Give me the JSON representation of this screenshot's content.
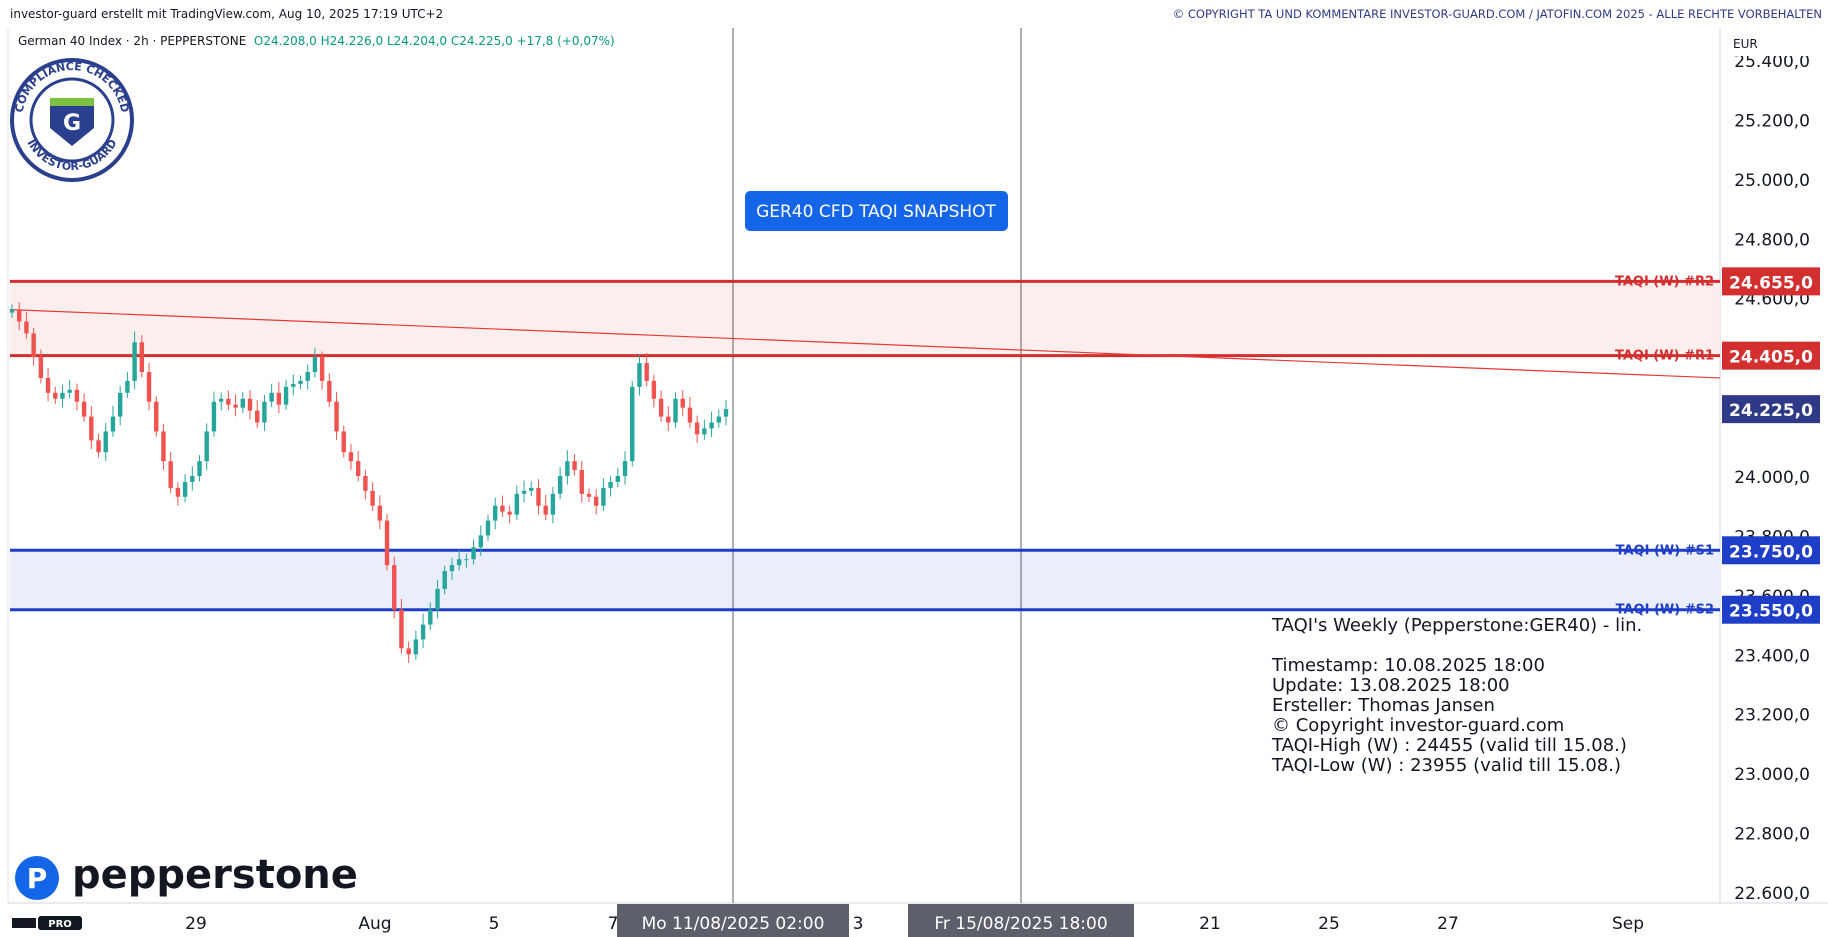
{
  "header": {
    "left_text": "investor-guard erstellt mit TradingView.com, Aug 10, 2025 17:19 UTC+2",
    "right_text": "© COPYRIGHT TA UND KOMMENTARE INVESTOR-GUARD.COM / JATOFIN.COM 2025 - ALLE RECHTE VORBEHALTEN"
  },
  "legend": {
    "symbol": "German 40 Index · 2h · PEPPERSTONE",
    "open": "O24.208,0",
    "high": "H24.226,0",
    "low": "L24.204,0",
    "close": "C24.225,0",
    "change": "+17,8 (+0,07%)"
  },
  "badge": {
    "ring_top": "COMPLIANCE CHECKED",
    "ring_bottom": "INVESTOR-GUARD",
    "letter": "G"
  },
  "snapshot_label": "GER40 CFD TAQI SNAPSHOT",
  "currency": "EUR",
  "brand": {
    "name": "pepperstone",
    "tv": "TV PRO"
  },
  "info_box": {
    "title": "TAQI's Weekly (Pepperstone:GER40) - lin.",
    "lines": [
      "Timestamp: 10.08.2025 18:00",
      "Update: 13.08.2025 18:00",
      "Ersteller: Thomas Jansen",
      "© Copyright investor-guard.com",
      "TAQI-High (W) : 24455 (valid till 15.08.)",
      "TAQI-Low (W) : 23955 (valid till 15.08.)"
    ]
  },
  "crosshair_labels": [
    "Mo 11/08/2025    02:00",
    "Fr 15/08/2025    18:00"
  ],
  "colors": {
    "resistance": "#d32f2f",
    "support": "#1e3ec8",
    "up": "#26a69a",
    "down": "#ef5350",
    "price_tag": "#2e3a87",
    "snapshot": "#1565e8"
  },
  "chart_data": {
    "type": "candlestick",
    "y_axis": {
      "min": 22600,
      "max": 25400,
      "ticks": [
        "25.400,0",
        "25.200,0",
        "25.000,0",
        "24.800,0",
        "24.600,0",
        "24.000,0",
        "23.800,0",
        "23.600,0",
        "23.400,0",
        "23.200,0",
        "23.000,0",
        "22.800,0",
        "22.600,0"
      ]
    },
    "x_ticks": [
      "29",
      "Aug",
      "5",
      "7",
      "3",
      "21",
      "25",
      "27",
      "Sep"
    ],
    "levels": [
      {
        "name": "TAQI (W) #R2",
        "value": 24655,
        "label": "24.655,0",
        "kind": "resistance"
      },
      {
        "name": "TAQI (W) #R1",
        "value": 24405,
        "label": "24.405,0",
        "kind": "resistance"
      },
      {
        "name": "TAQI (W) #S1",
        "value": 23750,
        "label": "23.750,0",
        "kind": "support"
      },
      {
        "name": "TAQI (W) #S2",
        "value": 23550,
        "label": "23.550,0",
        "kind": "support"
      }
    ],
    "last_price": {
      "value": 24225,
      "label": "24.225,0"
    },
    "trendline": {
      "start": 24560,
      "end": 24330
    },
    "close_path": [
      24560,
      24520,
      24480,
      24400,
      24330,
      24280,
      24260,
      24280,
      24290,
      24250,
      24200,
      24120,
      24080,
      24150,
      24200,
      24280,
      24320,
      24450,
      24350,
      24250,
      24150,
      24050,
      23960,
      23930,
      23980,
      24000,
      24050,
      24150,
      24250,
      24260,
      24240,
      24230,
      24260,
      24220,
      24180,
      24250,
      24280,
      24240,
      24300,
      24310,
      24320,
      24350,
      24400,
      24320,
      24250,
      24150,
      24080,
      24050,
      24000,
      23950,
      23900,
      23850,
      23700,
      23550,
      23420,
      23400,
      23450,
      23500,
      23550,
      23620,
      23680,
      23700,
      23720,
      23720,
      23760,
      23800,
      23850,
      23900,
      23880,
      23870,
      23940,
      23950,
      23960,
      23900,
      23870,
      23940,
      24000,
      24050,
      24020,
      23940,
      23930,
      23900,
      23960,
      23980,
      24000,
      24050,
      24300,
      24380,
      24320,
      24260,
      24200,
      24180,
      24260,
      24230,
      24180,
      24140,
      24160,
      24180,
      24200,
      24225
    ]
  }
}
